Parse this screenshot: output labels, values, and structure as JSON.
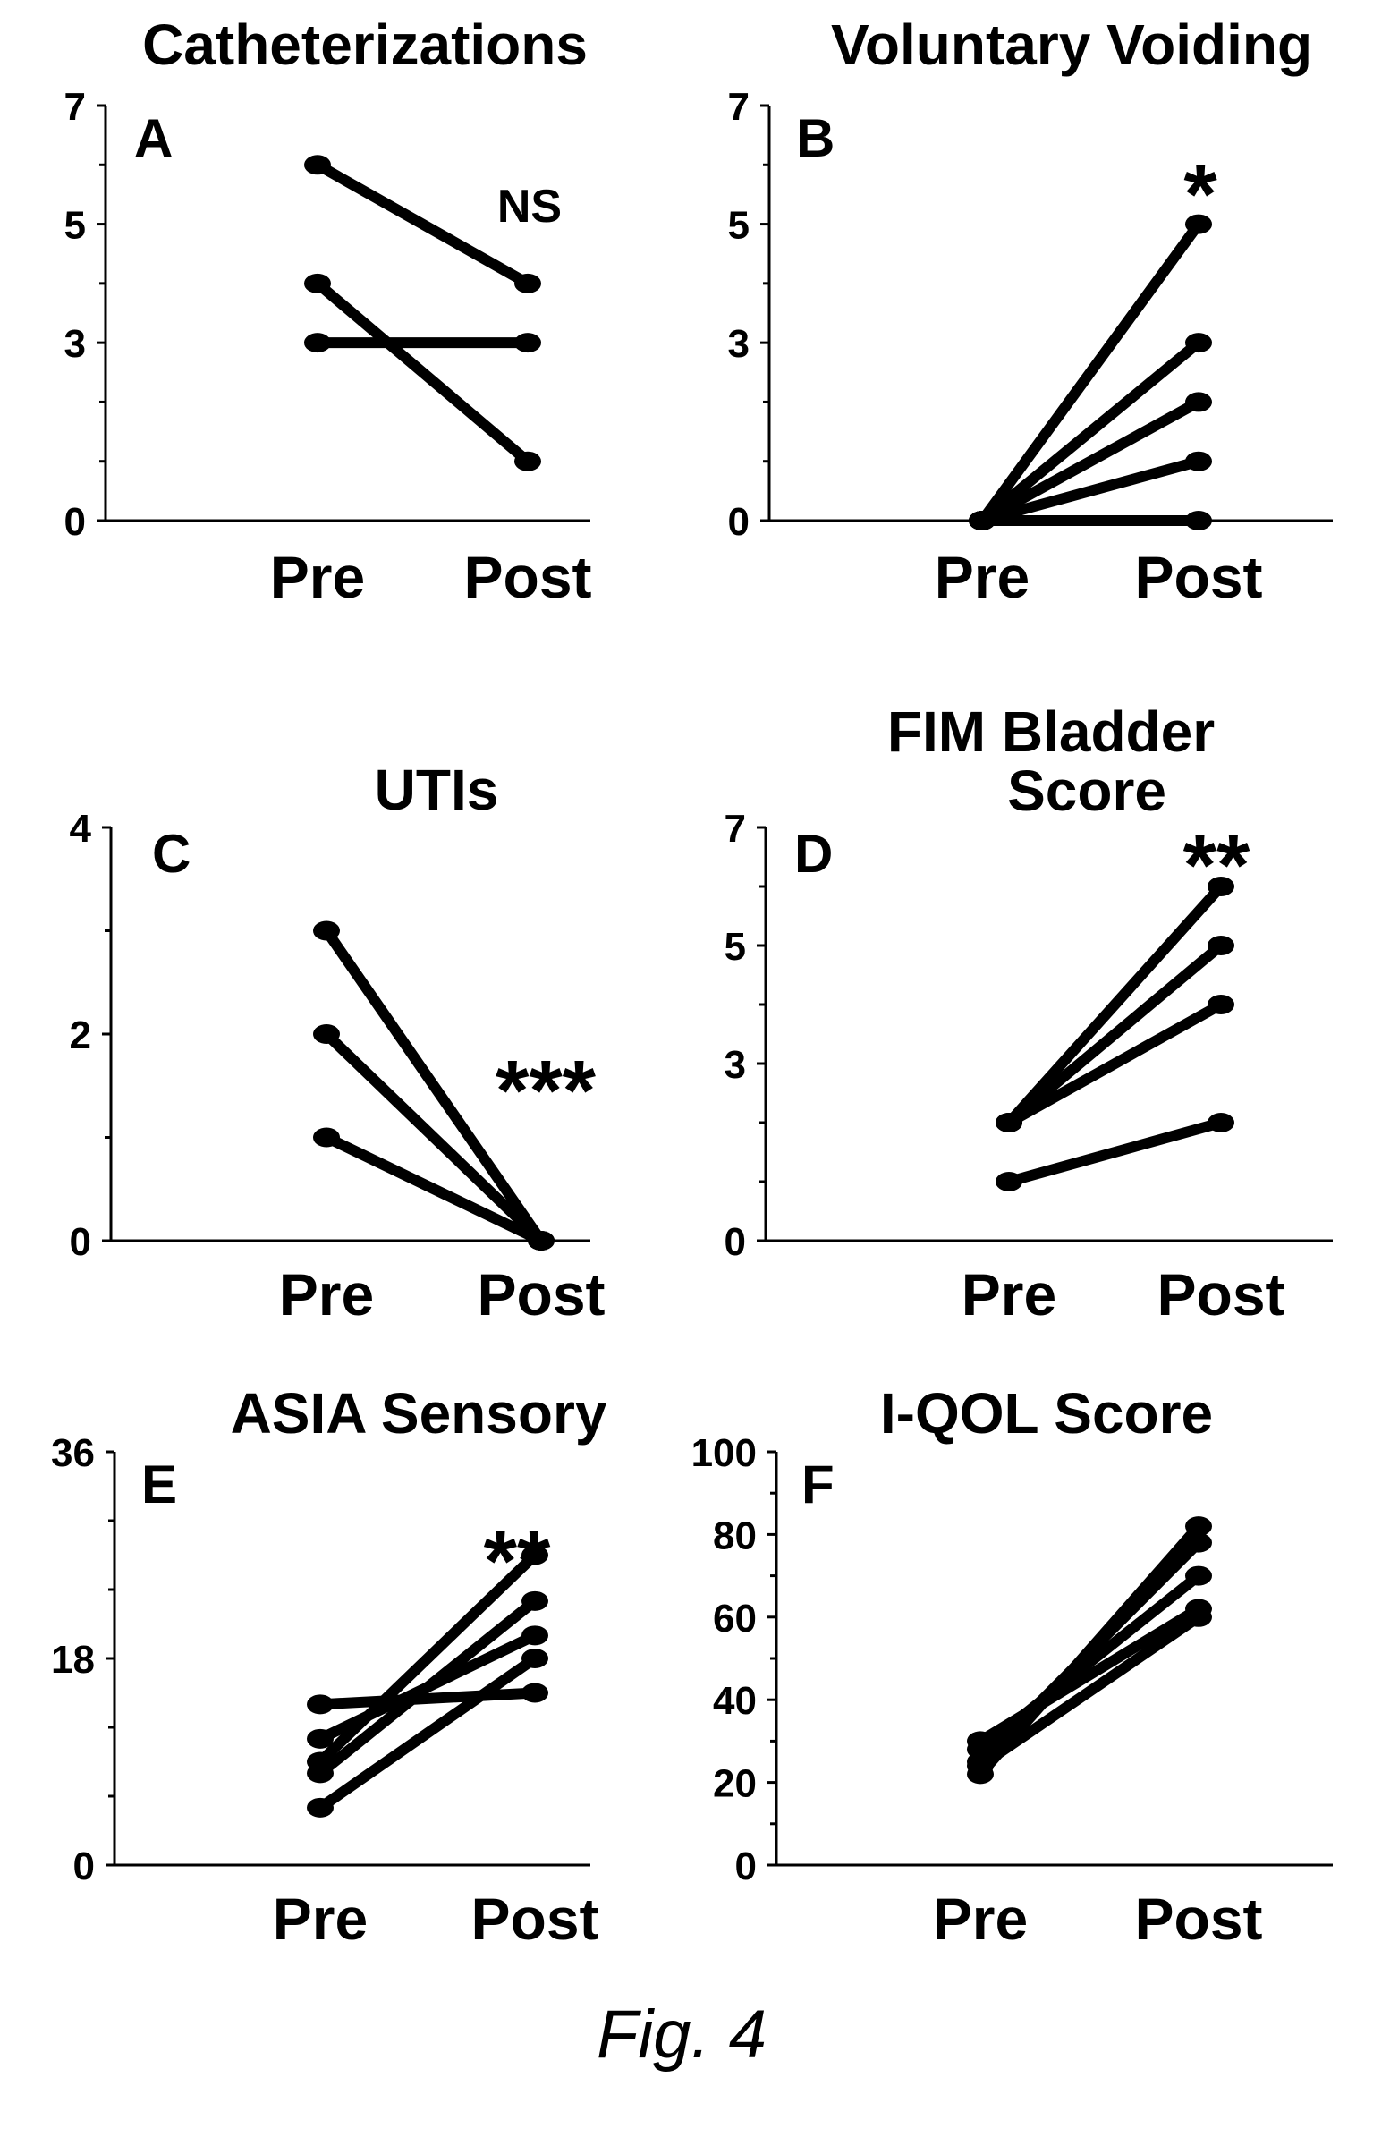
{
  "figure_caption": "Fig. 4",
  "chart_data": [
    {
      "type": "line",
      "panel": "A",
      "title": "Catheterizations",
      "categories": [
        "Pre",
        "Post"
      ],
      "ylim": [
        0,
        7
      ],
      "yticks": [
        0,
        3,
        5,
        7
      ],
      "minor_yticks": [
        1,
        2,
        4,
        6
      ],
      "significance": "NS",
      "series": [
        {
          "values": [
            6,
            4
          ]
        },
        {
          "values": [
            4,
            1
          ]
        },
        {
          "values": [
            3,
            3
          ]
        }
      ]
    },
    {
      "type": "line",
      "panel": "B",
      "title": "Voluntary Voiding",
      "categories": [
        "Pre",
        "Post"
      ],
      "ylim": [
        0,
        7
      ],
      "yticks": [
        0,
        3,
        5,
        7
      ],
      "minor_yticks": [
        1,
        2,
        4,
        6
      ],
      "significance": "*",
      "series": [
        {
          "values": [
            0,
            5
          ]
        },
        {
          "values": [
            0,
            3
          ]
        },
        {
          "values": [
            0,
            2
          ]
        },
        {
          "values": [
            0,
            1
          ]
        },
        {
          "values": [
            0,
            0
          ]
        }
      ]
    },
    {
      "type": "line",
      "panel": "C",
      "title": "UTIs",
      "categories": [
        "Pre",
        "Post"
      ],
      "ylim": [
        0,
        4
      ],
      "yticks": [
        0,
        2,
        4
      ],
      "minor_yticks": [
        1,
        3
      ],
      "significance": "***",
      "series": [
        {
          "values": [
            3,
            0
          ]
        },
        {
          "values": [
            2,
            0
          ]
        },
        {
          "values": [
            1,
            0
          ]
        }
      ]
    },
    {
      "type": "line",
      "panel": "D",
      "title": "FIM Bladder Score",
      "title_lines": [
        "FIM Bladder",
        "Score"
      ],
      "categories": [
        "Pre",
        "Post"
      ],
      "ylim": [
        0,
        7
      ],
      "yticks": [
        0,
        3,
        5,
        7
      ],
      "minor_yticks": [
        1,
        2,
        4,
        6
      ],
      "significance": "**",
      "series": [
        {
          "values": [
            2,
            6
          ]
        },
        {
          "values": [
            2,
            5
          ]
        },
        {
          "values": [
            2,
            4
          ]
        },
        {
          "values": [
            1,
            2
          ]
        }
      ]
    },
    {
      "type": "line",
      "panel": "E",
      "title": "ASIA Sensory",
      "categories": [
        "Pre",
        "Post"
      ],
      "ylim": [
        0,
        36
      ],
      "yticks": [
        0,
        18,
        36
      ],
      "minor_yticks": [
        6,
        12,
        24,
        30
      ],
      "significance": "**",
      "series": [
        {
          "values": [
            14,
            15
          ]
        },
        {
          "values": [
            11,
            20
          ]
        },
        {
          "values": [
            9,
            27
          ]
        },
        {
          "values": [
            8,
            23
          ]
        },
        {
          "values": [
            5,
            18
          ]
        }
      ]
    },
    {
      "type": "line",
      "panel": "F",
      "title": "I-QOL Score",
      "categories": [
        "Pre",
        "Post"
      ],
      "ylim": [
        0,
        100
      ],
      "yticks": [
        0,
        20,
        40,
        60,
        80,
        100
      ],
      "minor_yticks": [
        10,
        30,
        50,
        70,
        90
      ],
      "significance": "",
      "series": [
        {
          "values": [
            22,
            82
          ]
        },
        {
          "values": [
            25,
            78
          ]
        },
        {
          "values": [
            28,
            70
          ]
        },
        {
          "values": [
            30,
            62
          ]
        },
        {
          "values": [
            24,
            60
          ]
        }
      ]
    }
  ]
}
